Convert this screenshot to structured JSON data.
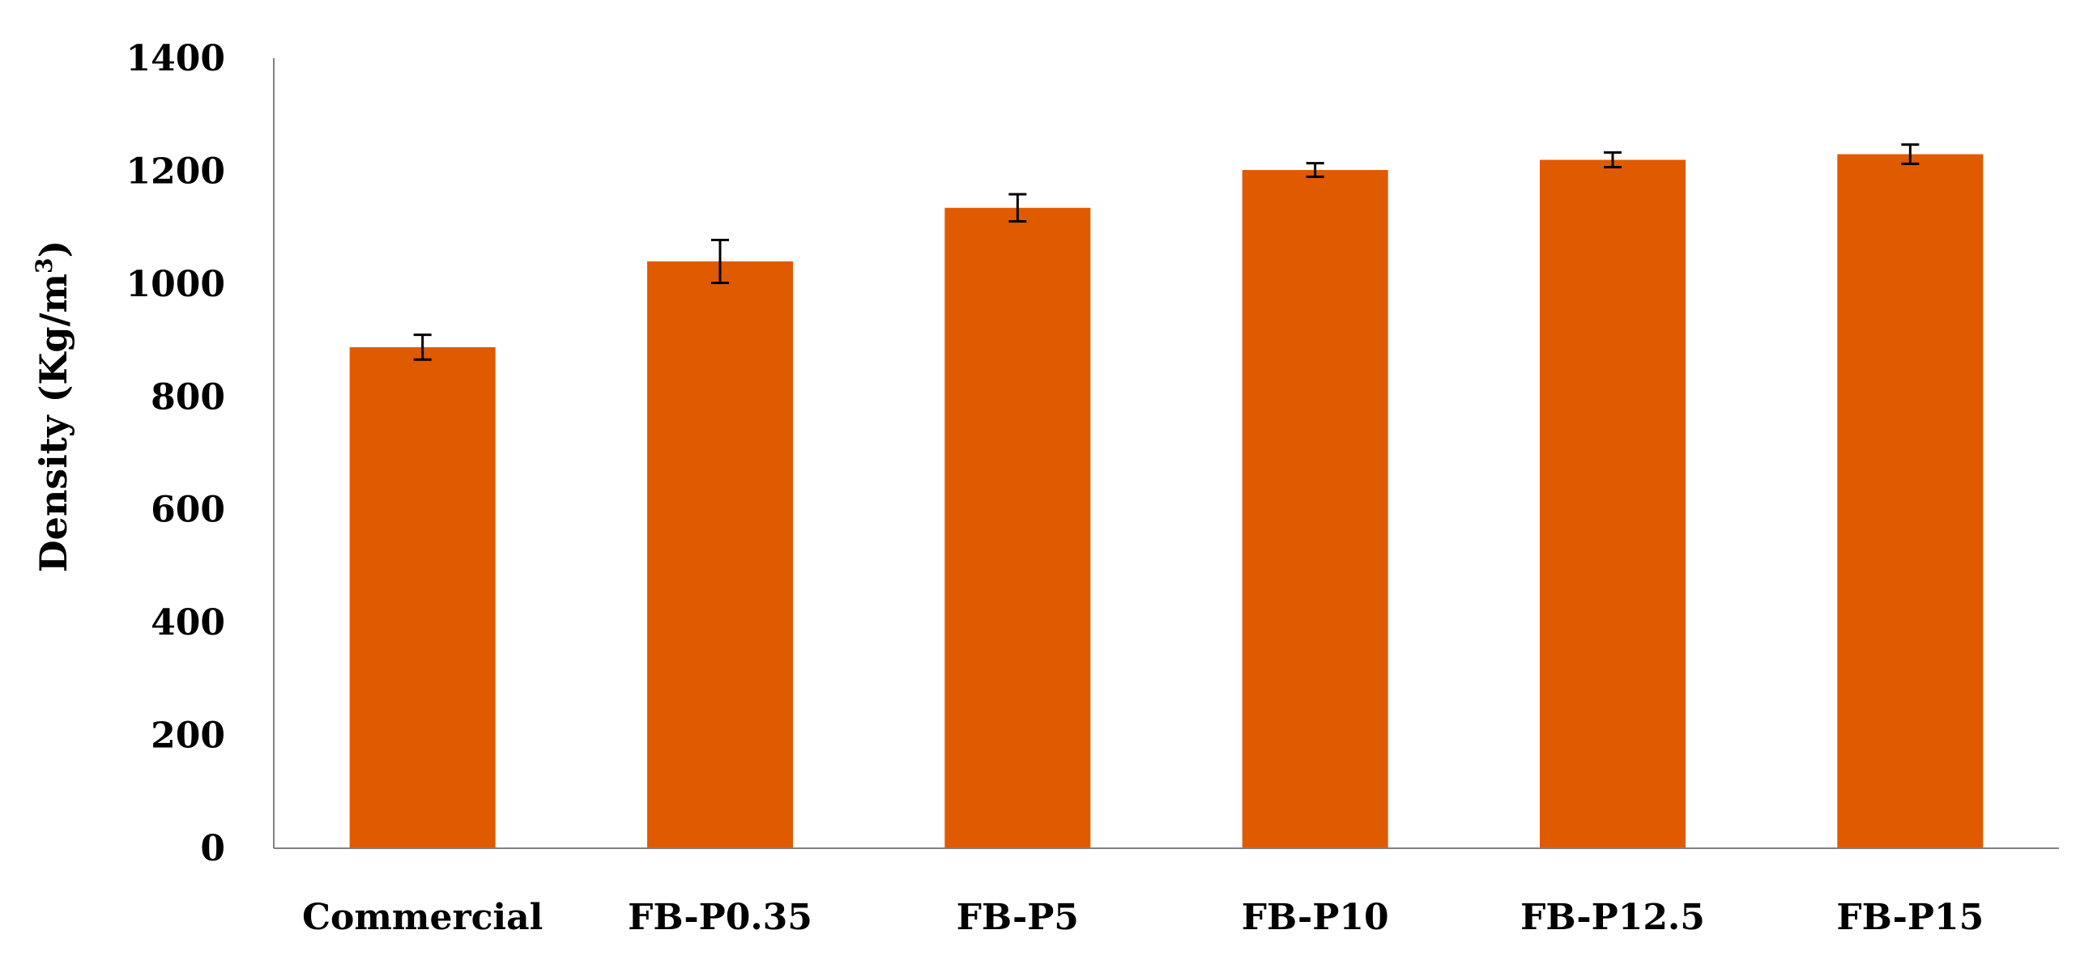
{
  "chart_data": {
    "type": "bar",
    "title": "",
    "xlabel": "",
    "ylabel": "Density (Kg/m",
    "ylabel_superscript": "3",
    "ylabel_suffix": ")",
    "categories": [
      "Commercial",
      "FB-P0.35",
      "FB-P5",
      "FB-P10",
      "FB-P12.5",
      "FB-P15"
    ],
    "values": [
      888,
      1040,
      1135,
      1202,
      1220,
      1230
    ],
    "errors": [
      22,
      38,
      24,
      12,
      13,
      17
    ],
    "ylim": [
      0,
      1400
    ],
    "yticks": [
      "0",
      "200",
      "400",
      "600",
      "800",
      "1000",
      "1200",
      "1400"
    ],
    "grid": false,
    "legend": "none",
    "colors": {
      "bar": "#E05A00",
      "axis": "#808080",
      "error_bar": "#000000"
    }
  }
}
